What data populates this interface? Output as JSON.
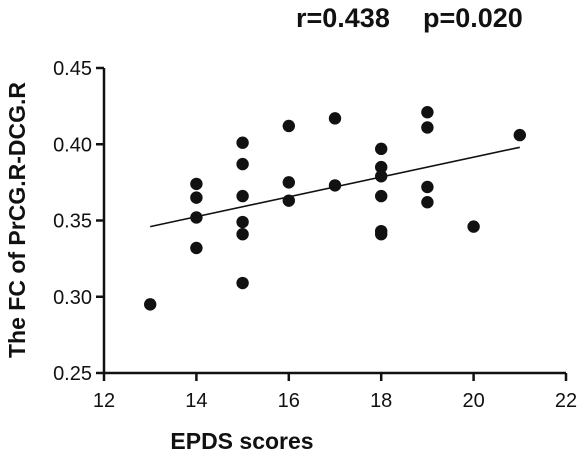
{
  "stats": {
    "r_label": "r=0.438",
    "p_label": "p=0.020"
  },
  "colors": {
    "ink": "#111111",
    "background": "#ffffff"
  },
  "chart_data": {
    "type": "scatter",
    "title": "",
    "xlabel": "EPDS scores",
    "ylabel": "The FC of PrCG.R-DCG.R",
    "xlim": [
      12,
      22
    ],
    "ylim": [
      0.25,
      0.45
    ],
    "xticks": [
      12,
      14,
      16,
      18,
      20,
      22
    ],
    "xtick_labels": [
      "12",
      "14",
      "16",
      "18",
      "20",
      "22"
    ],
    "yticks": [
      0.25,
      0.3,
      0.35,
      0.4,
      0.45
    ],
    "ytick_labels": [
      "0.25",
      "0.30",
      "0.35",
      "0.40",
      "0.45"
    ],
    "grid": false,
    "legend": "none",
    "points": [
      {
        "x": 13,
        "y": 0.295
      },
      {
        "x": 14,
        "y": 0.374
      },
      {
        "x": 14,
        "y": 0.365
      },
      {
        "x": 14,
        "y": 0.352
      },
      {
        "x": 14,
        "y": 0.332
      },
      {
        "x": 15,
        "y": 0.401
      },
      {
        "x": 15,
        "y": 0.387
      },
      {
        "x": 15,
        "y": 0.366
      },
      {
        "x": 15,
        "y": 0.349
      },
      {
        "x": 15,
        "y": 0.341
      },
      {
        "x": 15,
        "y": 0.309
      },
      {
        "x": 16,
        "y": 0.412
      },
      {
        "x": 16,
        "y": 0.375
      },
      {
        "x": 16,
        "y": 0.363
      },
      {
        "x": 17,
        "y": 0.417
      },
      {
        "x": 17,
        "y": 0.373
      },
      {
        "x": 18,
        "y": 0.397
      },
      {
        "x": 18,
        "y": 0.385
      },
      {
        "x": 18,
        "y": 0.379
      },
      {
        "x": 18,
        "y": 0.366
      },
      {
        "x": 18,
        "y": 0.343
      },
      {
        "x": 18,
        "y": 0.341
      },
      {
        "x": 19,
        "y": 0.421
      },
      {
        "x": 19,
        "y": 0.411
      },
      {
        "x": 19,
        "y": 0.372
      },
      {
        "x": 19,
        "y": 0.362
      },
      {
        "x": 20,
        "y": 0.346
      },
      {
        "x": 21,
        "y": 0.406
      }
    ],
    "fit_line": {
      "x": [
        13,
        21
      ],
      "y": [
        0.346,
        0.398
      ]
    },
    "annotations": [
      "r=0.438",
      "p=0.020"
    ]
  }
}
